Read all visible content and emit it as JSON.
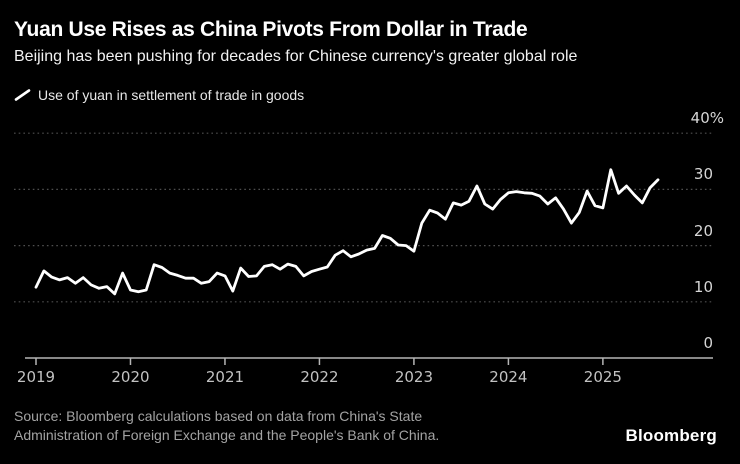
{
  "title": "Yuan Use Rises as China Pivots From Dollar in Trade",
  "subtitle": "Beijing has been pushing for decades for Chinese currency's greater global role",
  "legend": {
    "marker": "line-sample-icon",
    "label": "Use of yuan in settlement of trade in goods"
  },
  "source": {
    "line1": "Source: Bloomberg calculations based on data from China's State",
    "line2": "Administration of Foreign Exchange and the People's Bank of China."
  },
  "brand": "Bloomberg",
  "colors": {
    "background": "#000000",
    "line": "#ffffff",
    "grid": "#4f4f4f",
    "axis": "#b5b5b5",
    "y_label": "#d6d6d6",
    "x_label": "#c2c2c2",
    "title": "#ffffff",
    "subtitle": "#f2f2f2",
    "source": "#a3a3a3",
    "brand": "#ffffff"
  },
  "chart_data": {
    "type": "line",
    "title": "Use of yuan in settlement of trade in goods",
    "unit": "%",
    "frequency": "monthly",
    "x_start": "2019-01",
    "x_end": "2025-08",
    "ylim": [
      0,
      40
    ],
    "grid": "horizontal-dotted",
    "legend_position": "top-left",
    "y_axis_side": "right",
    "y_ticks": [
      {
        "label": "40%",
        "value": 40
      },
      {
        "label": "30",
        "value": 30
      },
      {
        "label": "20",
        "value": 20
      },
      {
        "label": "10",
        "value": 10
      },
      {
        "label": "0",
        "value": 0
      }
    ],
    "x_ticks": [
      "2019",
      "2020",
      "2021",
      "2022",
      "2023",
      "2024",
      "2025"
    ],
    "series": [
      {
        "name": "Use of yuan in settlement of trade in goods",
        "values": [
          12.6,
          15.5,
          14.4,
          13.9,
          14.3,
          13.3,
          14.3,
          13.0,
          12.4,
          12.7,
          11.4,
          15.1,
          12.1,
          11.8,
          12.1,
          16.6,
          16.1,
          15.1,
          14.7,
          14.2,
          14.2,
          13.3,
          13.6,
          15.1,
          14.6,
          11.9,
          16.0,
          14.5,
          14.6,
          16.3,
          16.6,
          15.8,
          16.7,
          16.3,
          14.6,
          15.4,
          15.8,
          16.2,
          18.3,
          19.1,
          18.0,
          18.5,
          19.2,
          19.5,
          21.8,
          21.3,
          20.1,
          20.0,
          19.0,
          24.0,
          26.3,
          25.8,
          24.7,
          27.6,
          27.2,
          27.9,
          30.6,
          27.4,
          26.5,
          28.2,
          29.4,
          29.6,
          29.4,
          29.3,
          28.8,
          27.4,
          28.5,
          26.5,
          24.0,
          25.9,
          29.7,
          27.1,
          26.7,
          33.5,
          29.3,
          30.6,
          29.0,
          27.6,
          30.3,
          31.7
        ]
      }
    ]
  }
}
